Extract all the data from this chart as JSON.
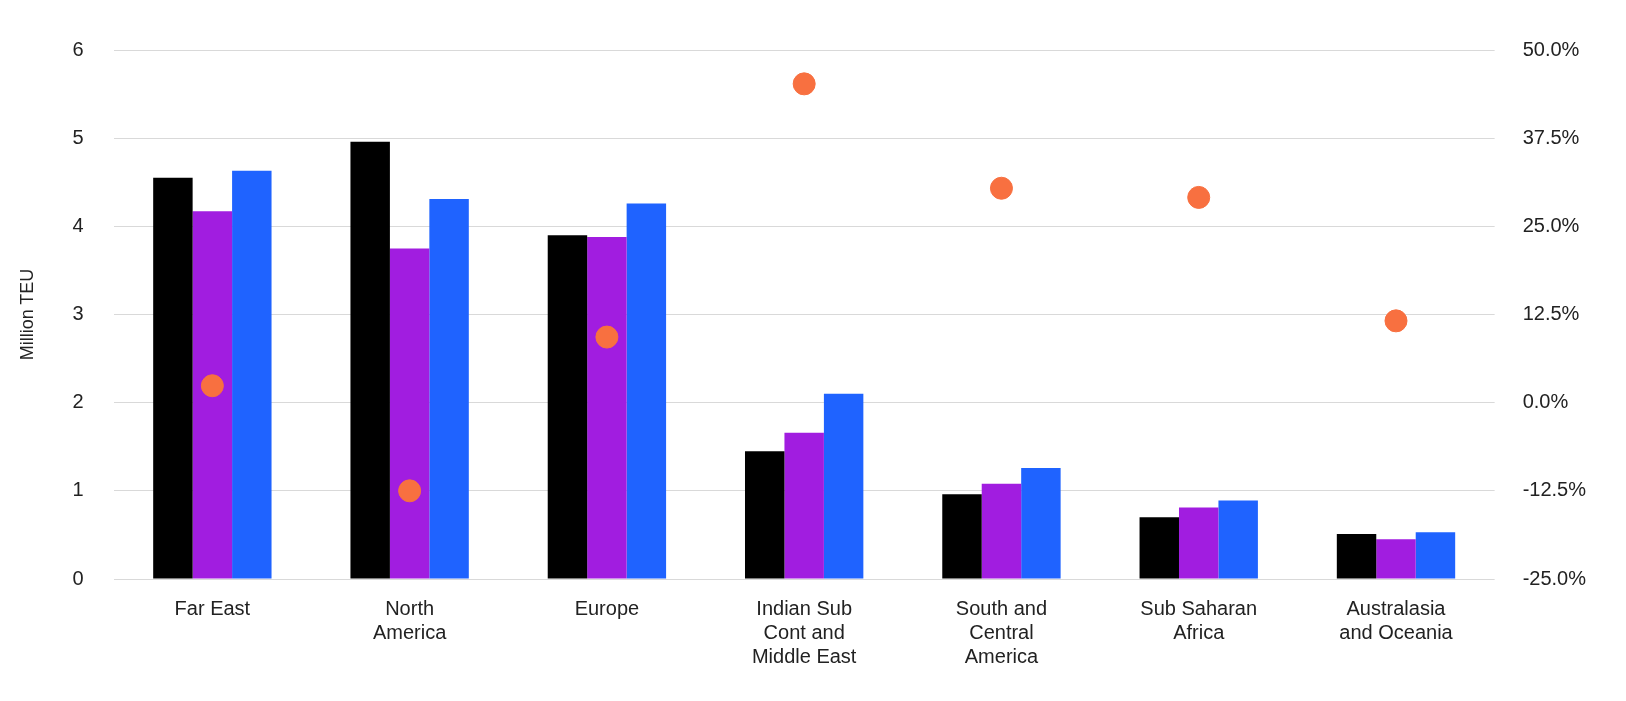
{
  "chart_data": {
    "type": "bar",
    "ylabel": "Million TEU",
    "categories": [
      "Far East",
      "North America",
      "Europe",
      "Indian Sub Cont and Middle East",
      "South and Central America",
      "Sub Saharan Africa",
      "Australasia and Oceania"
    ],
    "series": [
      {
        "color": "#000000",
        "values": [
          4.55,
          4.96,
          3.9,
          1.45,
          0.96,
          0.7,
          0.51
        ]
      },
      {
        "color": "#a11de0",
        "values": [
          4.17,
          3.75,
          3.88,
          1.66,
          1.08,
          0.81,
          0.45
        ]
      },
      {
        "color": "#1f63ff",
        "values": [
          4.63,
          4.31,
          4.26,
          2.1,
          1.26,
          0.89,
          0.53
        ]
      },
      {
        "type": "scatter",
        "axis": "y2",
        "color": "#f87040",
        "x": [
          "Far East",
          "North America",
          "Europe",
          "Indian Sub Cont and Middle East",
          "South and Central America",
          "Sub Saharan Africa",
          "Australasia and Oceania"
        ],
        "values": [
          2.4,
          -12.5,
          9.3,
          45.2,
          30.4,
          29.1,
          11.6
        ]
      }
    ],
    "ylim": [
      0,
      6
    ],
    "yticks": [
      0,
      1,
      2,
      3,
      4,
      5,
      6
    ],
    "y2lim": [
      -25,
      50
    ],
    "y2ticks": [
      {
        "value": -25,
        "label": "-25.0%"
      },
      {
        "value": -12.5,
        "label": "-12.5%"
      },
      {
        "value": 0,
        "label": "0.0%"
      },
      {
        "value": 12.5,
        "label": "12.5%"
      },
      {
        "value": 25,
        "label": "25.0%"
      },
      {
        "value": 37.5,
        "label": "37.5%"
      },
      {
        "value": 50,
        "label": "50.0%"
      }
    ],
    "grid": "y",
    "legend": false,
    "marker": "circle"
  }
}
